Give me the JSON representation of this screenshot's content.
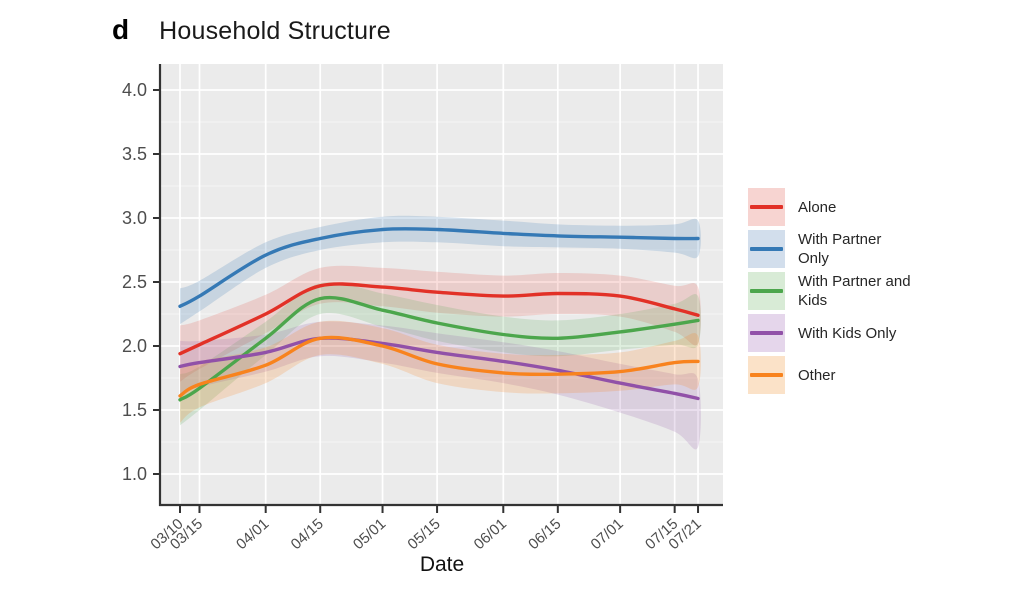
{
  "panel_label": "d",
  "title": "Household Structure",
  "axes": {
    "x_title": "Date"
  },
  "colors": {
    "panel_bg": "#EBEBEB",
    "grid": "#FFFFFF",
    "axis_line": "#333333",
    "tick_label": "#4D4D4D",
    "title_text": "#1A1A1A"
  },
  "legend": {
    "position": "right",
    "items": [
      {
        "label": "Alone",
        "line_color": "#E23127",
        "swatch_color": "#F7D4D1"
      },
      {
        "label": "With Partner Only",
        "line_color": "#3579B5",
        "swatch_color": "#D2DEEC"
      },
      {
        "label": "With Partner and Kids",
        "line_color": "#4CA64C",
        "swatch_color": "#D8EBD6"
      },
      {
        "label": "With Kids Only",
        "line_color": "#9151A8",
        "swatch_color": "#E5D6EB"
      },
      {
        "label": "Other",
        "line_color": "#F8831E",
        "swatch_color": "#FBE2C8"
      }
    ]
  },
  "chart_data": {
    "type": "line",
    "title": "Household Structure",
    "xlabel": "Date",
    "ylabel": "",
    "x_tick_labels": [
      "03/10",
      "03/15",
      "04/01",
      "04/15",
      "05/01",
      "05/15",
      "06/01",
      "06/15",
      "07/01",
      "07/15",
      "07/21"
    ],
    "x_days": [
      0,
      5,
      22,
      36,
      52,
      66,
      83,
      97,
      113,
      127,
      133
    ],
    "y_tick_labels": [
      "1.0",
      "1.5",
      "2.0",
      "2.5",
      "3.0",
      "3.5",
      "4.0"
    ],
    "y_ticks": [
      1.0,
      1.5,
      2.0,
      2.5,
      3.0,
      3.5,
      4.0
    ],
    "y_minor_ticks": [
      1.25,
      1.75,
      2.25,
      2.75,
      3.25,
      3.75
    ],
    "ylim": [
      0.76,
      4.2
    ],
    "grid": "white major+minor horizontal, white major vertical, on gray panel",
    "legend_position": "right",
    "band_style": "smoothed conditional-mean lines with translucent confidence ribbons",
    "series": [
      {
        "name": "Alone",
        "color": "#E23127",
        "band_color": "rgba(226,49,39,0.16)",
        "values": [
          1.94,
          2.01,
          2.25,
          2.47,
          2.46,
          2.42,
          2.39,
          2.41,
          2.39,
          2.29,
          2.24
        ],
        "ci_upper": [
          2.16,
          2.2,
          2.4,
          2.61,
          2.61,
          2.58,
          2.55,
          2.57,
          2.55,
          2.47,
          2.46
        ],
        "ci_lower": [
          1.72,
          1.82,
          2.1,
          2.33,
          2.31,
          2.26,
          2.23,
          2.25,
          2.23,
          2.11,
          2.02
        ]
      },
      {
        "name": "With Partner Only",
        "color": "#3579B5",
        "band_color": "rgba(53,121,181,0.20)",
        "values": [
          2.31,
          2.39,
          2.71,
          2.84,
          2.91,
          2.91,
          2.88,
          2.86,
          2.85,
          2.84,
          2.84
        ],
        "ci_upper": [
          2.45,
          2.51,
          2.81,
          2.93,
          3.01,
          3.01,
          2.98,
          2.95,
          2.94,
          2.95,
          2.98
        ],
        "ci_lower": [
          2.17,
          2.27,
          2.61,
          2.75,
          2.81,
          2.81,
          2.78,
          2.77,
          2.76,
          2.73,
          2.7
        ]
      },
      {
        "name": "With Partner and Kids",
        "color": "#4CA64C",
        "band_color": "rgba(76,166,76,0.18)",
        "values": [
          1.58,
          1.67,
          2.06,
          2.37,
          2.28,
          2.18,
          2.09,
          2.06,
          2.11,
          2.17,
          2.2
        ],
        "ci_upper": [
          1.78,
          1.84,
          2.19,
          2.49,
          2.41,
          2.32,
          2.23,
          2.2,
          2.25,
          2.33,
          2.39
        ],
        "ci_lower": [
          1.38,
          1.5,
          1.93,
          2.25,
          2.15,
          2.04,
          1.95,
          1.92,
          1.97,
          2.01,
          2.01
        ]
      },
      {
        "name": "With Kids Only",
        "color": "#9151A8",
        "band_color": "rgba(145,81,168,0.18)",
        "values": [
          1.84,
          1.87,
          1.95,
          2.06,
          2.02,
          1.95,
          1.88,
          1.81,
          1.71,
          1.63,
          1.59
        ],
        "ci_upper": [
          2.04,
          2.04,
          2.09,
          2.19,
          2.16,
          2.1,
          2.03,
          1.96,
          1.86,
          1.78,
          1.74
        ],
        "ci_lower": [
          1.62,
          1.68,
          1.8,
          1.92,
          1.87,
          1.79,
          1.71,
          1.62,
          1.48,
          1.33,
          1.21
        ]
      },
      {
        "name": "Other",
        "color": "#F8831E",
        "band_color": "rgba(248,131,30,0.20)",
        "values": [
          1.61,
          1.7,
          1.85,
          2.06,
          2.0,
          1.86,
          1.79,
          1.78,
          1.8,
          1.87,
          1.88
        ],
        "ci_upper": [
          1.82,
          1.88,
          1.99,
          2.19,
          2.14,
          2.01,
          1.94,
          1.93,
          1.95,
          2.04,
          2.08
        ],
        "ci_lower": [
          1.4,
          1.52,
          1.71,
          1.93,
          1.86,
          1.71,
          1.64,
          1.63,
          1.65,
          1.7,
          1.68
        ]
      }
    ]
  }
}
